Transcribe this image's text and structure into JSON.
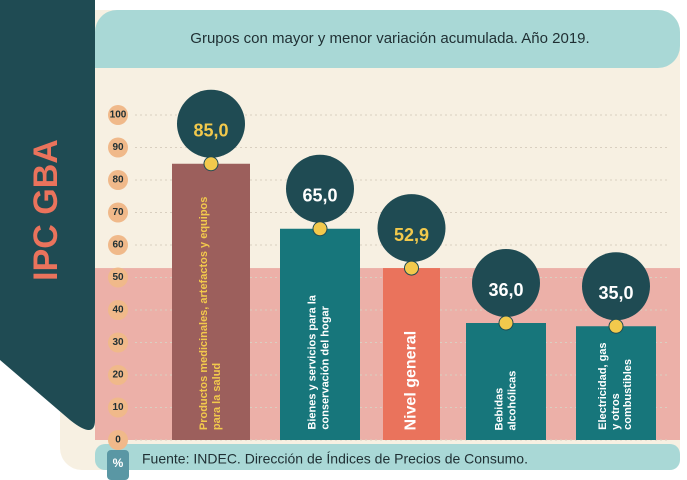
{
  "chart_data": {
    "type": "bar",
    "header": "IPC GBA",
    "title": "Grupos con mayor y menor variación acumulada. Año 2019.",
    "y_label": "%",
    "source": "Fuente: INDEC. Dirección de Índices de Precios de Consumo.",
    "categories": [
      "Productos medicinales, artefactos y equipos para la salud",
      "Bienes y servicios para la conservación del hogar",
      "Nivel general",
      "Bebidas alcohólicas",
      "Electricidad, gas y otros combustibles"
    ],
    "values": [
      85.0,
      65.0,
      52.9,
      36.0,
      35.0
    ],
    "value_labels": [
      "85,0",
      "65,0",
      "52,9",
      "36,0",
      "35,0"
    ],
    "colors": [
      "#9c5f5c",
      "#17767b",
      "#ea735c",
      "#17767b",
      "#17767b"
    ],
    "label_colors": [
      "#f2c94c",
      "#ffffff",
      "#ffffff",
      "#ffffff",
      "#ffffff"
    ],
    "value_label_colors": [
      "#f2c94c",
      "#ffffff",
      "#f2c94c",
      "#ffffff",
      "#ffffff"
    ],
    "ylim": [
      0,
      100
    ],
    "yticks": [
      0,
      10,
      20,
      30,
      40,
      50,
      60,
      70,
      80,
      90,
      100
    ],
    "grid": true
  }
}
